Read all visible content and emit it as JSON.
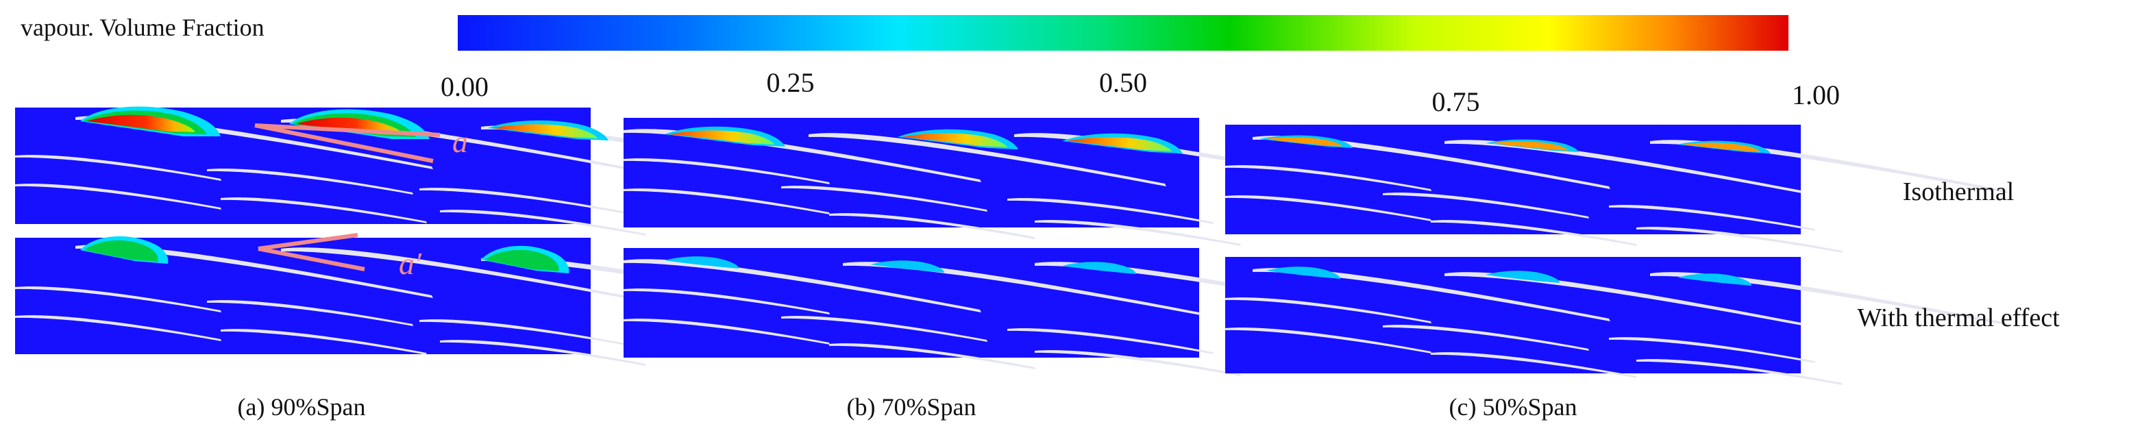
{
  "colorbar": {
    "title": "vapour. Volume Fraction",
    "ticks": [
      "0.00",
      "0.25",
      "0.50",
      "0.75",
      "1.00"
    ],
    "stops": [
      {
        "value": 0.0,
        "color": "#0a14ff"
      },
      {
        "value": 0.17,
        "color": "#0070ff"
      },
      {
        "value": 0.33,
        "color": "#00e8ff"
      },
      {
        "value": 0.48,
        "color": "#00e07a"
      },
      {
        "value": 0.58,
        "color": "#00d000"
      },
      {
        "value": 0.72,
        "color": "#c8ff00"
      },
      {
        "value": 0.82,
        "color": "#ffff00"
      },
      {
        "value": 0.91,
        "color": "#ff8c00"
      },
      {
        "value": 1.0,
        "color": "#e00000"
      }
    ]
  },
  "colors": {
    "background_field": "#1610ff",
    "blade": "#e0e0f0",
    "annotation": "#f08a8a"
  },
  "rows": [
    "Isothermal",
    "With thermal effect"
  ],
  "columns": [
    "(a) 90%Span",
    "(b) 70%Span",
    "(c) 50%Span"
  ],
  "annotations": [
    "a",
    "a′"
  ]
}
